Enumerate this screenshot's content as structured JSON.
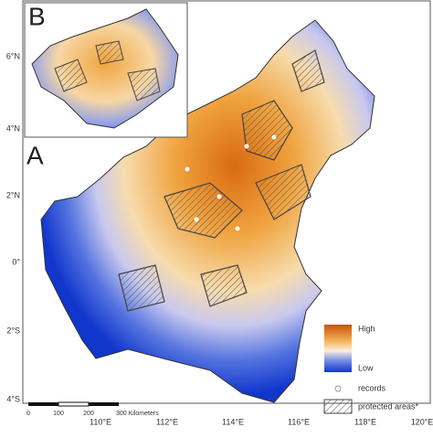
{
  "panels": {
    "main": "A",
    "inset": "B"
  },
  "latitude_labels": [
    "6°N",
    "4°N",
    "2°N",
    "0°",
    "2°S",
    "4°S"
  ],
  "longitude_labels": [
    "110°E",
    "112°E",
    "114°E",
    "116°E",
    "118°E",
    "120°E"
  ],
  "scale_bar": {
    "labels": [
      "0",
      "100",
      "200",
      "300 Kilometers"
    ]
  },
  "legend": {
    "high": "High",
    "low": "Low",
    "records": "records",
    "protected": "protected areas*"
  }
}
